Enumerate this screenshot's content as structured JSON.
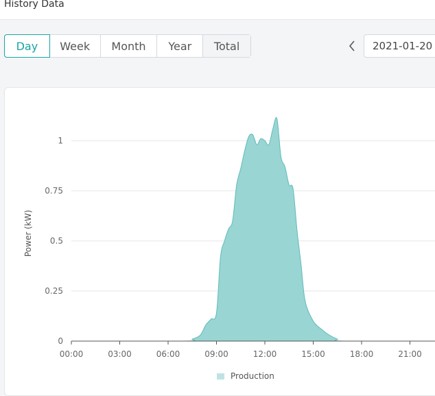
{
  "header": {
    "title": "History Data"
  },
  "tabs": [
    {
      "label": "Day",
      "active": true
    },
    {
      "label": "Week",
      "active": false
    },
    {
      "label": "Month",
      "active": false
    },
    {
      "label": "Year",
      "active": false
    },
    {
      "label": "Total",
      "active": false
    }
  ],
  "date_nav": {
    "prev_icon": "chevron-left-icon",
    "date": "2021-01-20"
  },
  "colors": {
    "accent": "#1aa3a3",
    "fill": "#99d5d3",
    "stroke": "#5fbcb9"
  },
  "chart_data": {
    "type": "area",
    "ylabel": "Power  (kW)",
    "xlabel": "",
    "ylim": [
      0,
      1.1
    ],
    "yticks": [
      "0",
      "0.25",
      "0.5",
      "0.75",
      "1"
    ],
    "xticks": [
      "00:00",
      "03:00",
      "06:00",
      "09:00",
      "12:00",
      "15:00",
      "18:00",
      "21:00"
    ],
    "grid": "horizontal",
    "legend_position": "bottom",
    "series": [
      {
        "name": "Production",
        "points": [
          [
            "00:00",
            0
          ],
          [
            "07:00",
            0
          ],
          [
            "07:30",
            0.01
          ],
          [
            "08:00",
            0.03
          ],
          [
            "08:20",
            0.08
          ],
          [
            "08:40",
            0.11
          ],
          [
            "09:00",
            0.14
          ],
          [
            "09:15",
            0.42
          ],
          [
            "09:30",
            0.5
          ],
          [
            "09:45",
            0.56
          ],
          [
            "10:00",
            0.6
          ],
          [
            "10:15",
            0.78
          ],
          [
            "10:30",
            0.86
          ],
          [
            "10:45",
            0.95
          ],
          [
            "11:00",
            1.02
          ],
          [
            "11:15",
            1.03
          ],
          [
            "11:30",
            0.98
          ],
          [
            "11:45",
            1.01
          ],
          [
            "12:00",
            1.0
          ],
          [
            "12:15",
            0.98
          ],
          [
            "12:30",
            1.06
          ],
          [
            "12:45",
            1.11
          ],
          [
            "13:00",
            0.92
          ],
          [
            "13:15",
            0.87
          ],
          [
            "13:30",
            0.78
          ],
          [
            "13:45",
            0.76
          ],
          [
            "14:00",
            0.55
          ],
          [
            "14:15",
            0.38
          ],
          [
            "14:30",
            0.2
          ],
          [
            "15:00",
            0.1
          ],
          [
            "15:30",
            0.06
          ],
          [
            "16:00",
            0.03
          ],
          [
            "16:30",
            0.01
          ],
          [
            "17:00",
            0
          ],
          [
            "24:00",
            0
          ]
        ]
      }
    ]
  }
}
